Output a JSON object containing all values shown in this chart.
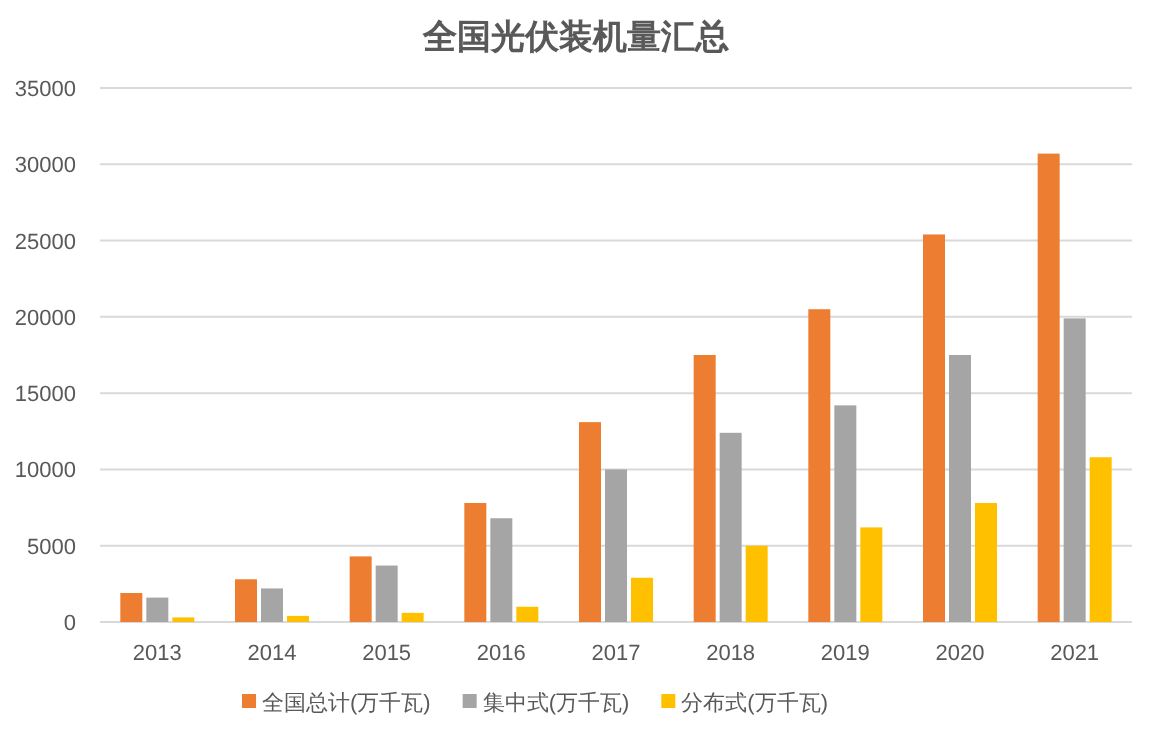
{
  "chart_data": {
    "type": "bar",
    "title": "全国光伏装机量汇总",
    "categories": [
      "2013",
      "2014",
      "2015",
      "2016",
      "2017",
      "2018",
      "2019",
      "2020",
      "2021"
    ],
    "series": [
      {
        "name": "全国总计(万千瓦)",
        "color": "#ed7d31",
        "values": [
          1900,
          2800,
          4300,
          7800,
          13100,
          17500,
          20500,
          25400,
          30700
        ]
      },
      {
        "name": "集中式(万千瓦)",
        "color": "#a5a5a5",
        "values": [
          1600,
          2200,
          3700,
          6800,
          10000,
          12400,
          14200,
          17500,
          19900
        ]
      },
      {
        "name": "分布式(万千瓦)",
        "color": "#ffc000",
        "values": [
          300,
          400,
          600,
          1000,
          2900,
          5000,
          6200,
          7800,
          10800
        ]
      }
    ],
    "ylim": [
      0,
      35000
    ],
    "yticks": [
      0,
      5000,
      10000,
      15000,
      20000,
      25000,
      30000,
      35000
    ],
    "grid": "y",
    "legend": "bottom"
  }
}
